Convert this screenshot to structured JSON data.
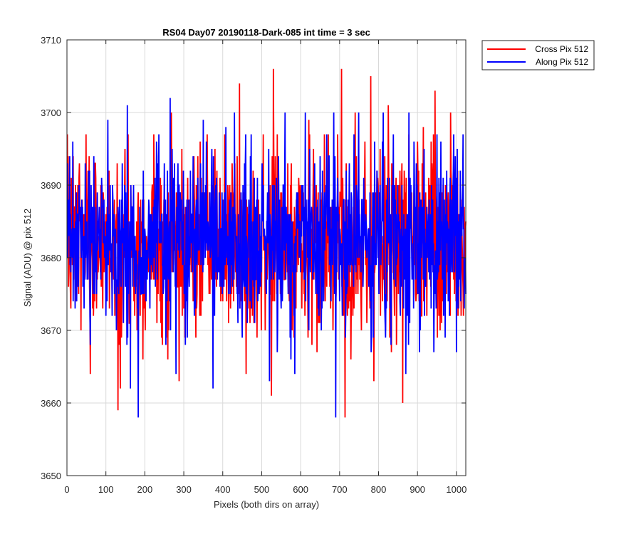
{
  "chart_data": {
    "type": "line",
    "title": "RS04 Day07 20190118-Dark-085 int time = 3 sec",
    "xlabel": "Pixels (both dirs on array)",
    "ylabel": "Signal (ADU) @ pix 512",
    "xlim": [
      0,
      1024
    ],
    "ylim": [
      3650,
      3710
    ],
    "x_ticks": [
      0,
      100,
      200,
      300,
      400,
      500,
      600,
      700,
      800,
      900,
      1000
    ],
    "y_ticks": [
      3650,
      3660,
      3670,
      3680,
      3690,
      3700,
      3710
    ],
    "x_tick_labels": [
      "0",
      "100",
      "200",
      "300",
      "400",
      "500",
      "600",
      "700",
      "800",
      "900",
      "1000"
    ],
    "y_tick_labels": [
      "3650",
      "3660",
      "3670",
      "3680",
      "3690",
      "3700",
      "3710"
    ],
    "grid": true,
    "legend_position": "outside-top-right",
    "series": [
      {
        "name": "Cross Pix 512",
        "color": "#ff0000",
        "x_start": 1,
        "x_step": 1,
        "noise_mean": 3682,
        "noise_sd": 6,
        "seed": 7,
        "peaks": [
          {
            "x": 3,
            "y": 3694
          },
          {
            "x": 32,
            "y": 3693
          },
          {
            "x": 60,
            "y": 3664
          },
          {
            "x": 131,
            "y": 3659
          },
          {
            "x": 137,
            "y": 3662
          },
          {
            "x": 240,
            "y": 3691
          },
          {
            "x": 268,
            "y": 3700
          },
          {
            "x": 288,
            "y": 3663
          },
          {
            "x": 443,
            "y": 3704
          },
          {
            "x": 460,
            "y": 3664
          },
          {
            "x": 525,
            "y": 3661
          },
          {
            "x": 530,
            "y": 3706
          },
          {
            "x": 621,
            "y": 3699
          },
          {
            "x": 642,
            "y": 3667
          },
          {
            "x": 705,
            "y": 3706
          },
          {
            "x": 714,
            "y": 3658
          },
          {
            "x": 740,
            "y": 3700
          },
          {
            "x": 780,
            "y": 3705
          },
          {
            "x": 788,
            "y": 3663
          },
          {
            "x": 825,
            "y": 3701
          },
          {
            "x": 862,
            "y": 3660
          },
          {
            "x": 915,
            "y": 3698
          },
          {
            "x": 945,
            "y": 3703
          },
          {
            "x": 985,
            "y": 3700
          },
          {
            "x": 1018,
            "y": 3672
          }
        ]
      },
      {
        "name": "Along Pix 512",
        "color": "#0000ff",
        "x_start": 1,
        "x_step": 1,
        "noise_mean": 3682,
        "noise_sd": 5.6,
        "seed": 23,
        "peaks": [
          {
            "x": 15,
            "y": 3696
          },
          {
            "x": 60,
            "y": 3668
          },
          {
            "x": 105,
            "y": 3699
          },
          {
            "x": 155,
            "y": 3701
          },
          {
            "x": 163,
            "y": 3662
          },
          {
            "x": 183,
            "y": 3658
          },
          {
            "x": 265,
            "y": 3702
          },
          {
            "x": 280,
            "y": 3664
          },
          {
            "x": 350,
            "y": 3699
          },
          {
            "x": 375,
            "y": 3662
          },
          {
            "x": 408,
            "y": 3698
          },
          {
            "x": 430,
            "y": 3700
          },
          {
            "x": 520,
            "y": 3663
          },
          {
            "x": 560,
            "y": 3700
          },
          {
            "x": 585,
            "y": 3664
          },
          {
            "x": 612,
            "y": 3700
          },
          {
            "x": 685,
            "y": 3700
          },
          {
            "x": 690,
            "y": 3658
          },
          {
            "x": 749,
            "y": 3700
          },
          {
            "x": 812,
            "y": 3700
          },
          {
            "x": 870,
            "y": 3664
          },
          {
            "x": 878,
            "y": 3700
          },
          {
            "x": 905,
            "y": 3667
          },
          {
            "x": 1000,
            "y": 3667
          },
          {
            "x": 1017,
            "y": 3697
          }
        ]
      }
    ]
  }
}
